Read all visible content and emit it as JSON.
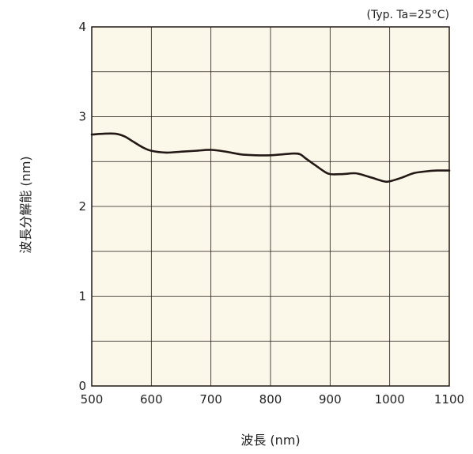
{
  "chart_data": {
    "type": "line",
    "title": "",
    "annotation": "(Typ. Ta=25°C)",
    "xlabel": "波長 (nm)",
    "ylabel": "波長分解能 (nm)",
    "xlim": [
      500,
      1100
    ],
    "ylim": [
      0,
      4
    ],
    "xticks": [
      500,
      600,
      700,
      800,
      900,
      1000,
      1100
    ],
    "yticks": [
      0,
      1,
      2,
      3,
      4
    ],
    "grid": true,
    "plot_background": "#fbf8ea",
    "line_color": "#231815",
    "series": [
      {
        "x": [
          500,
          520,
          540,
          555,
          570,
          585,
          600,
          625,
          650,
          675,
          700,
          725,
          750,
          775,
          800,
          820,
          840,
          850,
          860,
          875,
          890,
          900,
          920,
          940,
          950,
          970,
          990,
          1000,
          1020,
          1040,
          1060,
          1080,
          1100
        ],
        "y": [
          2.8,
          2.81,
          2.81,
          2.78,
          2.72,
          2.66,
          2.62,
          2.6,
          2.61,
          2.62,
          2.63,
          2.61,
          2.58,
          2.57,
          2.57,
          2.58,
          2.59,
          2.58,
          2.53,
          2.46,
          2.39,
          2.36,
          2.36,
          2.37,
          2.36,
          2.32,
          2.28,
          2.28,
          2.32,
          2.37,
          2.39,
          2.4,
          2.4
        ]
      }
    ]
  }
}
